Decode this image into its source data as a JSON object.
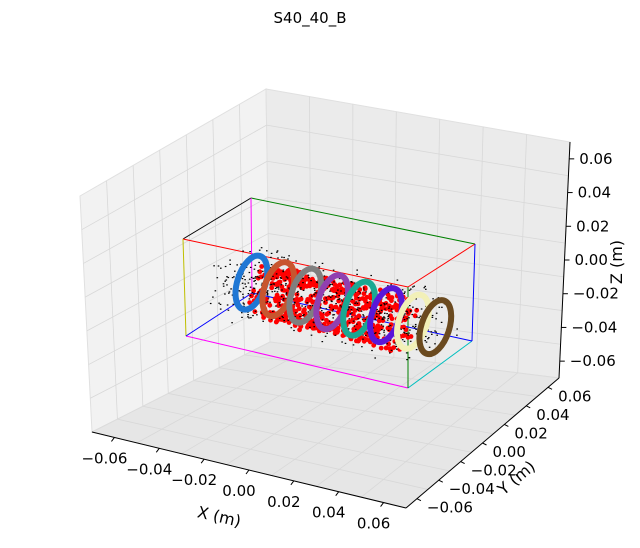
{
  "chart_data": {
    "type": "scatter",
    "projection": "3d",
    "title": "S40_40_B",
    "xlabel": "X (m)",
    "ylabel": "Y (m)",
    "zlabel": "Z (m)",
    "xlim": [
      -0.07,
      0.07
    ],
    "ylim": [
      -0.07,
      0.07
    ],
    "zlim": [
      -0.07,
      0.07
    ],
    "xticks": [
      "−0.06",
      "−0.04",
      "−0.02",
      "0.00",
      "0.02",
      "0.04",
      "0.06"
    ],
    "yticks": [
      "−0.06",
      "−0.04",
      "−0.02",
      "0.00",
      "0.02",
      "0.04",
      "0.06"
    ],
    "zticks": [
      "0.06",
      "0.04",
      "0.02",
      "0.00",
      "−0.02",
      "−0.04",
      "−0.06"
    ],
    "grid": true,
    "pane_color": "#f2f2f2",
    "bounding_box": {
      "x": [
        -0.045,
        0.045
      ],
      "y": [
        -0.02,
        0.02
      ],
      "z": [
        -0.03,
        0.03
      ],
      "edge_colors": [
        "#000000",
        "#008000",
        "#ff0000",
        "#0000ff",
        "#bfbf00",
        "#ff00ff",
        "#00bfbf"
      ]
    },
    "coils": [
      {
        "color": "#1f77d4",
        "x": -0.036,
        "radius": 0.02
      },
      {
        "color": "#c8552e",
        "x": -0.024,
        "radius": 0.02
      },
      {
        "color": "#7f7f7f",
        "x": -0.012,
        "radius": 0.02
      },
      {
        "color": "#9040b0",
        "x": 0.0,
        "radius": 0.02
      },
      {
        "color": "#1aa892",
        "x": 0.012,
        "radius": 0.02
      },
      {
        "color": "#5a17d8",
        "x": 0.024,
        "radius": 0.02
      },
      {
        "color": "#f2f0b8",
        "x": 0.036,
        "radius": 0.02
      },
      {
        "color": "#6b4a1f",
        "x": 0.046,
        "radius": 0.02
      }
    ],
    "magnet_points": {
      "color": "#ff0000",
      "x": [
        -0.03,
        0.03
      ],
      "radius": 0.015
    },
    "field_points": {
      "color": "#000000",
      "x": [
        -0.045,
        0.045
      ],
      "y": [
        -0.02,
        0.02
      ],
      "z": [
        -0.01,
        0.02
      ]
    }
  }
}
